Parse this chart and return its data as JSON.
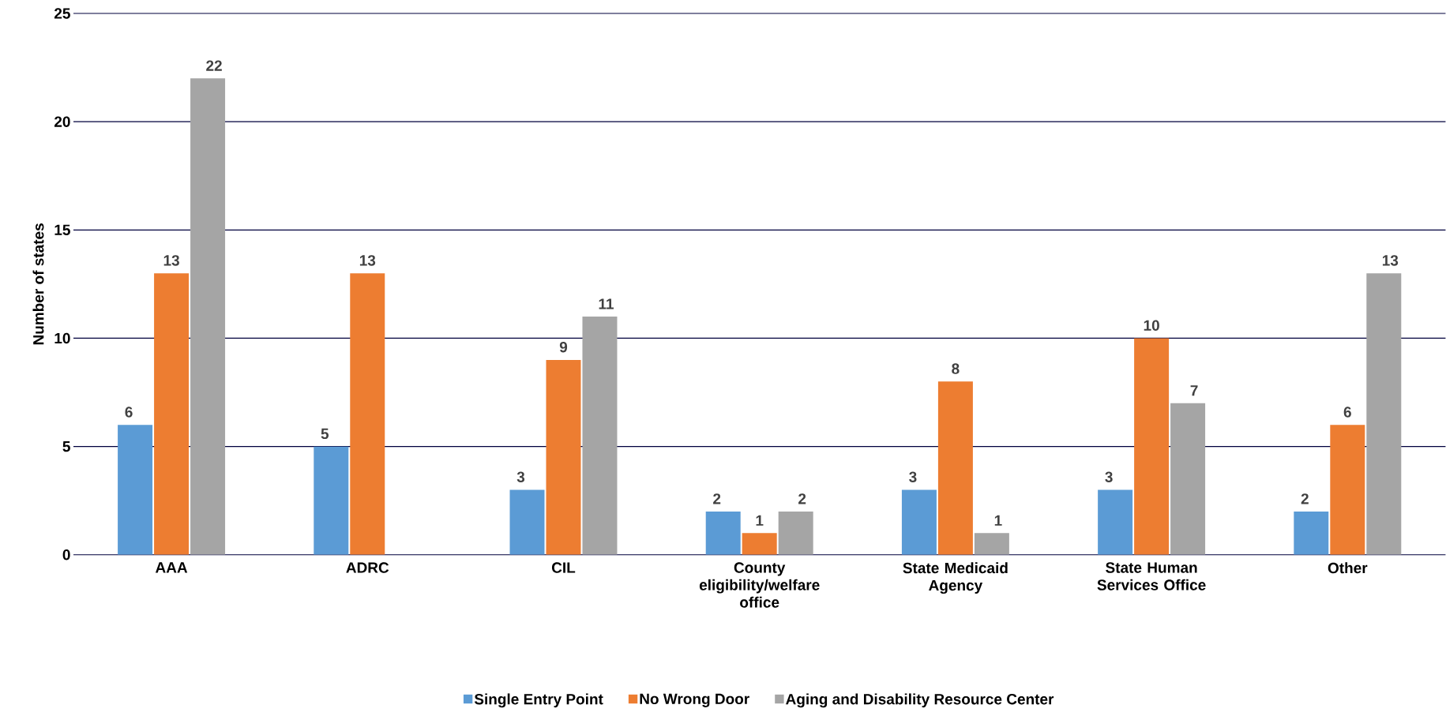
{
  "chart_data": {
    "type": "bar",
    "ylabel": "Number of states",
    "categories": [
      "AAA",
      "ADRC",
      "CIL",
      "County eligibility/welfare office",
      "State Medicaid Agency",
      "State Human Services Office",
      "Other"
    ],
    "series": [
      {
        "name": "Single Entry Point",
        "color": "#5b9bd5",
        "values": [
          6,
          5,
          3,
          2,
          3,
          3,
          2
        ]
      },
      {
        "name": "No Wrong Door",
        "color": "#ed7d31",
        "values": [
          13,
          13,
          9,
          1,
          8,
          10,
          6
        ]
      },
      {
        "name": "Aging and Disability Resource Center",
        "color": "#a5a5a5",
        "values": [
          22,
          null,
          11,
          2,
          1,
          7,
          13
        ]
      }
    ],
    "ylim": [
      0,
      25
    ],
    "yticks": [
      0,
      5,
      10,
      15,
      20,
      25
    ],
    "grid": "y",
    "legend": "bottom",
    "data_labels": true
  }
}
